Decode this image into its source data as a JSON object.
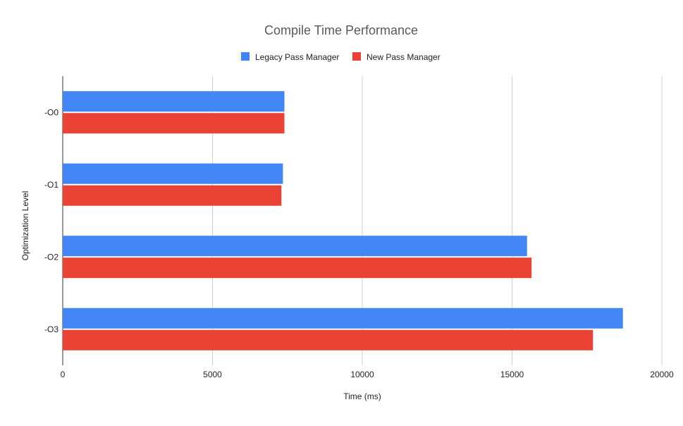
{
  "chart_data": {
    "type": "bar",
    "orientation": "horizontal",
    "title": "Compile Time Performance",
    "xlabel": "Time (ms)",
    "ylabel": "Optimization Level",
    "categories": [
      "-O0",
      "-O1",
      "-O2",
      "-O3"
    ],
    "series": [
      {
        "name": "Legacy Pass Manager",
        "color": "#4285f4",
        "values": [
          7400,
          7350,
          15500,
          18700
        ]
      },
      {
        "name": "New Pass Manager",
        "color": "#ea4335",
        "values": [
          7400,
          7300,
          15650,
          17700
        ]
      }
    ],
    "xlim": [
      0,
      20000
    ],
    "xticks": [
      0,
      5000,
      10000,
      15000,
      20000
    ],
    "grid": true,
    "legend_position": "top"
  }
}
